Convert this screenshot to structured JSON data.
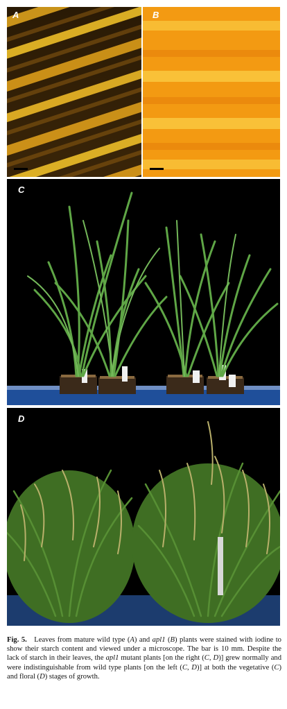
{
  "figure": {
    "panels": [
      {
        "label": "A"
      },
      {
        "label": "B"
      },
      {
        "label": "C"
      },
      {
        "label": "D"
      }
    ],
    "caption": {
      "fig_label": "Fig. 5.",
      "t1": "Leaves from mature wild type (",
      "a": "A",
      "t2": ") and ",
      "apl1_1": "apl1",
      "t3": " (",
      "b": "B",
      "t4": ") plants were stained with iodine to show their starch content and viewed under a microscope. The bar is 10 mm. Despite the lack of starch in their leaves, the ",
      "apl1_2": "apl1",
      "t5": " mutant plants [on the right (",
      "c1": "C",
      "t6": ", ",
      "d1": "D",
      "t7": ")] grew normally and were indistinguishable from wild type plants [on the left (",
      "c2": "C",
      "t8": ", ",
      "d2": "D",
      "t9": ")] at both the vegetative (",
      "c3": "C",
      "t10": ") and floral (",
      "d3": "D",
      "t11": ") stages of growth."
    }
  },
  "colors": {
    "stain_dark": "#2a1a05",
    "stain_gold": "#f2b21e",
    "stain_orange": "#f59a10",
    "plant_green": "#5fa646",
    "mature_green": "#3f6e23",
    "panicle": "#b9b06b",
    "background": "#000000"
  }
}
